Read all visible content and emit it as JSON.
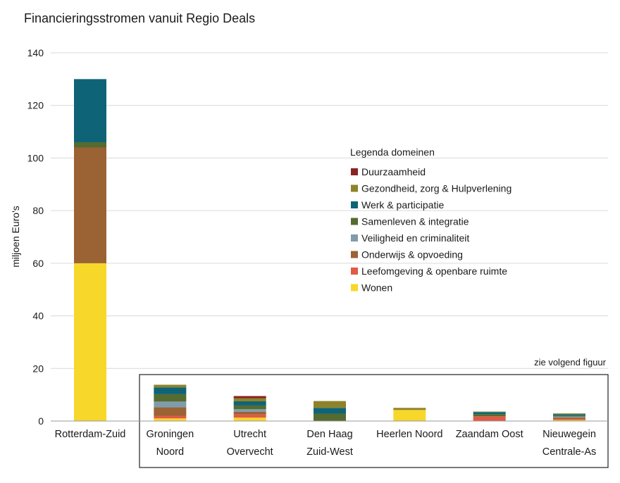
{
  "chart_data": {
    "type": "bar",
    "stacked": true,
    "title": "Financieringsstromen vanuit Regio Deals",
    "ylabel": "miljoen Euro's",
    "xlabel": "",
    "ylim": [
      0,
      140
    ],
    "yticks": [
      0,
      20,
      40,
      60,
      80,
      100,
      120,
      140
    ],
    "grid": true,
    "legend_title": "Legenda domeinen",
    "legend_position": "right",
    "note": "zie volgend figuur",
    "categories": [
      [
        "Rotterdam-Zuid"
      ],
      [
        "Groningen",
        "Noord"
      ],
      [
        "Utrecht",
        "Overvecht"
      ],
      [
        "Den Haag",
        "Zuid-West"
      ],
      [
        "Heerlen Noord"
      ],
      [
        "Zaandam Oost"
      ],
      [
        "Nieuwegein",
        "Centrale-As"
      ]
    ],
    "series": [
      {
        "name": "Wonen",
        "color": "#f7d72a",
        "values": [
          60,
          1.0,
          1.3,
          0,
          4.2,
          0,
          0.4
        ]
      },
      {
        "name": "Leefomgeving & openbare ruimte",
        "color": "#e05a44",
        "values": [
          0,
          1.0,
          1.2,
          0,
          0,
          1.8,
          0.4
        ]
      },
      {
        "name": "Onderwijs & opvoeding",
        "color": "#9b6234",
        "values": [
          44,
          3.2,
          1.0,
          0,
          0,
          0,
          0.5
        ]
      },
      {
        "name": "Veiligheid en criminaliteit",
        "color": "#7f9cad",
        "values": [
          0,
          2.2,
          1.0,
          0,
          0,
          0,
          0.4
        ]
      },
      {
        "name": "Samenleven & integratie",
        "color": "#556b2f",
        "values": [
          2,
          2.8,
          1.4,
          2.8,
          0,
          0.8,
          0.4
        ]
      },
      {
        "name": "Werk & participatie",
        "color": "#0e6476",
        "values": [
          24,
          2.6,
          1.6,
          2.2,
          0,
          0.8,
          0.5
        ]
      },
      {
        "name": "Gezondheid, zorg & Hulpverlening",
        "color": "#8e832a",
        "values": [
          0,
          1.0,
          1.2,
          2.6,
          0.8,
          0.2,
          0.3
        ]
      },
      {
        "name": "Duurzaamheid",
        "color": "#8b2323",
        "values": [
          0,
          0,
          0.8,
          0,
          0,
          0,
          0
        ]
      }
    ]
  }
}
